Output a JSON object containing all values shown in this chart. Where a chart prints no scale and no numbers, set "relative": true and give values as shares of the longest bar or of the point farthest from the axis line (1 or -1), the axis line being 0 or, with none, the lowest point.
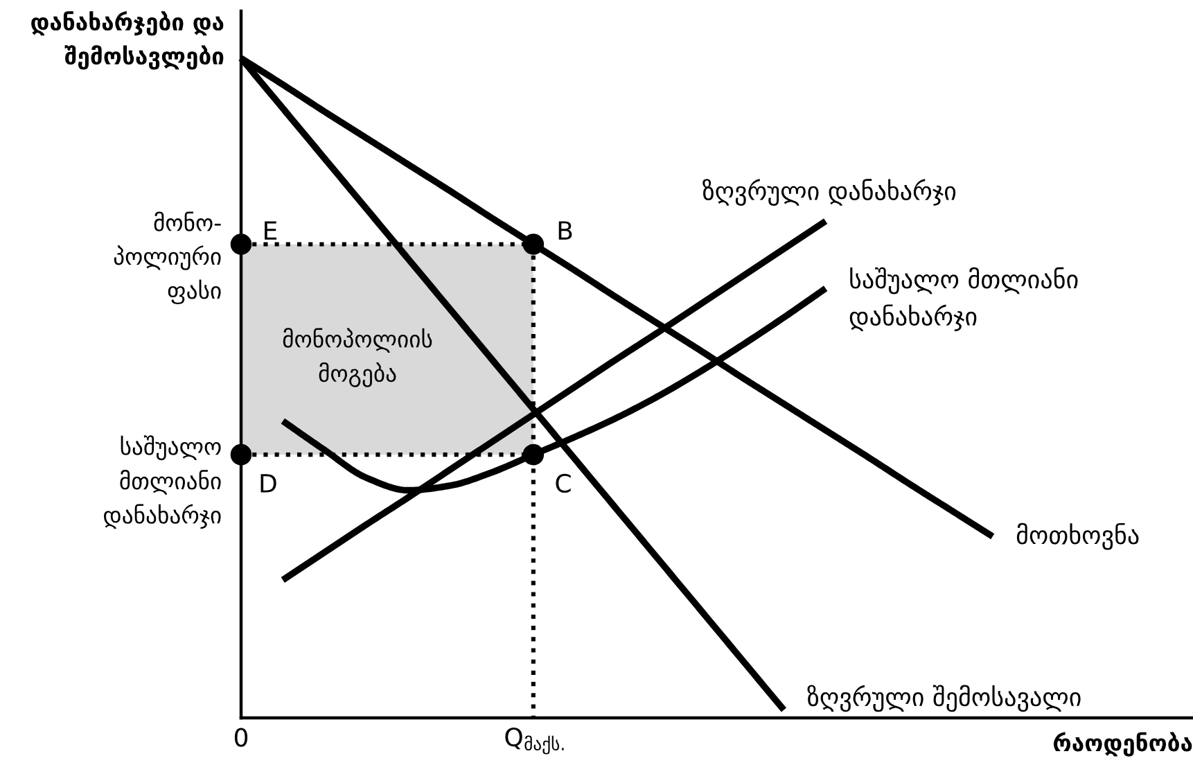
{
  "chart_data": {
    "type": "line",
    "relative": true,
    "ylabel": "დანახარჯები და\nშემოსავლები",
    "xlabel": "რაოდენობა",
    "grid": false,
    "line_style": "solid",
    "marker": "none",
    "categories": [
      "0",
      null,
      null,
      null,
      null,
      null,
      null,
      "Q$_{მაქს.}$",
      null,
      null,
      null,
      null,
      null,
      null,
      null,
      null,
      null,
      null,
      null,
      null,
      null,
      null,
      null
    ],
    "series": [
      {
        "name": "მოთხოვნა",
        "color": "#000000",
        "values": [
          1,
          0.96,
          0.919,
          0.879,
          0.839,
          0.799,
          0.758,
          0.718,
          0.678,
          0.637,
          0.597,
          0.557,
          0.516,
          0.476,
          0.436,
          0.396,
          0.355,
          0.315,
          0.275,
          null,
          null,
          null,
          null
        ]
      },
      {
        "name": "ზღვრული შემოსავალი",
        "color": "#000000",
        "values": [
          1,
          0.924,
          0.848,
          0.772,
          0.696,
          0.62,
          0.544,
          0.468,
          0.392,
          0.316,
          0.24,
          0.164,
          0.088,
          0.012,
          null,
          null,
          null,
          null,
          null,
          null,
          null,
          null,
          null
        ]
      },
      {
        "name": "ზღვრული დანახარჯი",
        "color": "#000000",
        "values": [
          null,
          0.209,
          0.251,
          0.293,
          0.334,
          0.376,
          0.418,
          0.46,
          0.502,
          0.544,
          0.585,
          0.627,
          0.669,
          0.711,
          0.753,
          null,
          null,
          null,
          null,
          null,
          null,
          null,
          null
        ]
      },
      {
        "name": "საშუალო მთლიანი\nდანახარჯი",
        "color": "#000000",
        "values": [
          null,
          0.45,
          0.406,
          0.364,
          0.345,
          0.352,
          0.372,
          0.399,
          0.426,
          0.455,
          0.488,
          0.525,
          0.565,
          0.607,
          0.651,
          null,
          null,
          null,
          null,
          null,
          null,
          null,
          null
        ]
      },
      {
        "color": "#000000",
        "line_style": "dotted",
        "marker": "circle",
        "x": [
          "0",
          "Q$_{მაქს.}$"
        ],
        "values": [
          0.718,
          0.718
        ],
        "lower": [
          0.399,
          0.399
        ],
        "upper": [
          0.718,
          0.718
        ]
      },
      {
        "color": "#000000",
        "line_style": "dotted",
        "marker": "circle",
        "x": [
          "0",
          "Q$_{მაქს.}$"
        ],
        "values": [
          0.399,
          0.399
        ]
      },
      {
        "color": "#000000",
        "line_style": "dotted",
        "x": [
          "Q$_{მაქს.}$",
          "Q$_{მაქს.}$"
        ],
        "values": [
          0.718,
          0
        ]
      }
    ],
    "annotations": [
      {
        "text": "E",
        "x": "0",
        "y": 0.718
      },
      {
        "text": "B",
        "x": "Q$_{მაქს.}$",
        "y": 0.718
      },
      {
        "text": "D",
        "x": "0",
        "y": 0.399
      },
      {
        "text": "C",
        "x": "Q$_{მაქს.}$",
        "y": 0.399
      },
      {
        "text": "მონო-\nპოლიური\nფასი",
        "x": "0",
        "y": 0.718
      },
      {
        "text": "საშუალო\nმთლიანი\nდანახარჯი",
        "x": "0",
        "y": 0.399
      },
      "მონოპოლიის\nმოგება"
    ]
  }
}
